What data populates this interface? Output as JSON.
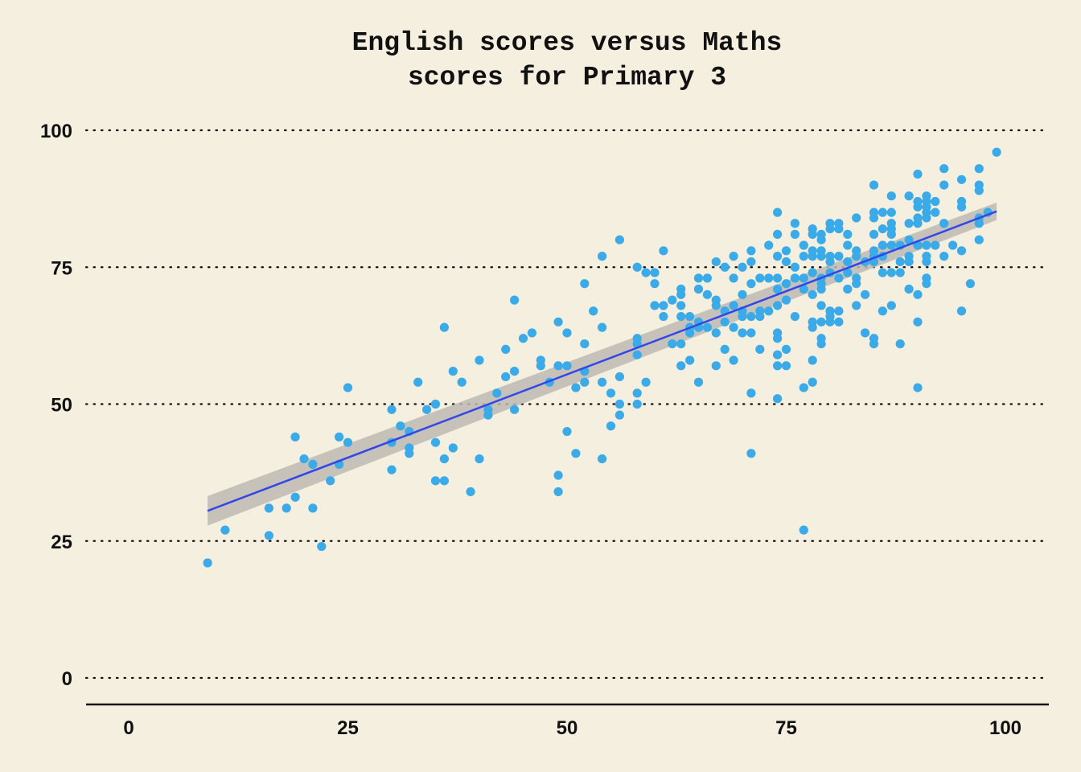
{
  "chart_data": {
    "type": "scatter",
    "title_lines": [
      "English scores versus Maths",
      "scores for Primary 3"
    ],
    "xlabel": "",
    "ylabel": "",
    "xlim": [
      -5,
      105
    ],
    "ylim": [
      -5,
      103
    ],
    "x_ticks": [
      0,
      25,
      50,
      75,
      100
    ],
    "y_ticks": [
      0,
      25,
      50,
      75,
      100
    ],
    "grid": "horizontal dotted",
    "colors": {
      "points": "#3aaae8",
      "line": "#3346e6",
      "band": "#bdbab4",
      "background": "#f5efdf"
    },
    "trend": {
      "x": [
        9,
        99
      ],
      "y": [
        30.5,
        85.2
      ],
      "band_low": [
        27.8,
        83.6
      ],
      "band_high": [
        33.2,
        86.8
      ]
    },
    "points": [
      [
        9,
        21
      ],
      [
        11,
        27
      ],
      [
        16,
        31
      ],
      [
        16,
        26
      ],
      [
        18,
        31
      ],
      [
        19,
        33
      ],
      [
        19,
        44
      ],
      [
        20,
        40
      ],
      [
        21,
        39
      ],
      [
        21,
        31
      ],
      [
        22,
        24
      ],
      [
        23,
        36
      ],
      [
        24,
        44
      ],
      [
        24,
        39
      ],
      [
        25,
        53
      ],
      [
        25,
        43
      ],
      [
        30,
        49
      ],
      [
        30,
        43
      ],
      [
        30,
        38
      ],
      [
        31,
        46
      ],
      [
        32,
        45
      ],
      [
        32,
        42
      ],
      [
        32,
        41
      ],
      [
        33,
        54
      ],
      [
        34,
        49
      ],
      [
        35,
        50
      ],
      [
        35,
        43
      ],
      [
        35,
        36
      ],
      [
        36,
        64
      ],
      [
        36,
        40
      ],
      [
        36,
        36
      ],
      [
        37,
        56
      ],
      [
        37,
        42
      ],
      [
        38,
        54
      ],
      [
        39,
        34
      ],
      [
        40,
        58
      ],
      [
        40,
        40
      ],
      [
        41,
        49
      ],
      [
        41,
        48
      ],
      [
        42,
        52
      ],
      [
        43,
        60
      ],
      [
        43,
        55
      ],
      [
        44,
        69
      ],
      [
        44,
        56
      ],
      [
        44,
        49
      ],
      [
        45,
        62
      ],
      [
        46,
        63
      ],
      [
        47,
        58
      ],
      [
        47,
        57
      ],
      [
        48,
        54
      ],
      [
        49,
        65
      ],
      [
        49,
        57
      ],
      [
        49,
        37
      ],
      [
        49,
        34
      ],
      [
        50,
        63
      ],
      [
        50,
        57
      ],
      [
        50,
        45
      ],
      [
        51,
        53
      ],
      [
        51,
        41
      ],
      [
        52,
        72
      ],
      [
        52,
        61
      ],
      [
        52,
        56
      ],
      [
        52,
        54
      ],
      [
        53,
        67
      ],
      [
        54,
        77
      ],
      [
        54,
        64
      ],
      [
        54,
        54
      ],
      [
        54,
        40
      ],
      [
        55,
        52
      ],
      [
        55,
        46
      ],
      [
        56,
        80
      ],
      [
        56,
        55
      ],
      [
        56,
        50
      ],
      [
        56,
        48
      ],
      [
        58,
        75
      ],
      [
        58,
        62
      ],
      [
        58,
        61
      ],
      [
        58,
        59
      ],
      [
        58,
        52
      ],
      [
        58,
        50
      ],
      [
        59,
        74
      ],
      [
        59,
        54
      ],
      [
        60,
        74
      ],
      [
        60,
        72
      ],
      [
        60,
        68
      ],
      [
        61,
        78
      ],
      [
        61,
        68
      ],
      [
        61,
        66
      ],
      [
        62,
        69
      ],
      [
        62,
        61
      ],
      [
        63,
        71
      ],
      [
        63,
        70
      ],
      [
        63,
        68
      ],
      [
        63,
        66
      ],
      [
        63,
        61
      ],
      [
        63,
        57
      ],
      [
        64,
        66
      ],
      [
        64,
        64
      ],
      [
        64,
        63
      ],
      [
        64,
        58
      ],
      [
        65,
        73
      ],
      [
        65,
        71
      ],
      [
        65,
        65
      ],
      [
        65,
        64
      ],
      [
        65,
        54
      ],
      [
        66,
        73
      ],
      [
        66,
        70
      ],
      [
        66,
        64
      ],
      [
        67,
        76
      ],
      [
        67,
        69
      ],
      [
        67,
        68
      ],
      [
        67,
        63
      ],
      [
        67,
        57
      ],
      [
        68,
        75
      ],
      [
        68,
        67
      ],
      [
        68,
        65
      ],
      [
        68,
        60
      ],
      [
        69,
        77
      ],
      [
        69,
        73
      ],
      [
        69,
        68
      ],
      [
        69,
        64
      ],
      [
        69,
        58
      ],
      [
        70,
        75
      ],
      [
        70,
        70
      ],
      [
        70,
        67
      ],
      [
        70,
        66
      ],
      [
        70,
        63
      ],
      [
        71,
        78
      ],
      [
        71,
        76
      ],
      [
        71,
        72
      ],
      [
        71,
        66
      ],
      [
        71,
        63
      ],
      [
        71,
        52
      ],
      [
        71,
        41
      ],
      [
        72,
        73
      ],
      [
        72,
        67
      ],
      [
        72,
        66
      ],
      [
        72,
        60
      ],
      [
        73,
        79
      ],
      [
        73,
        73
      ],
      [
        73,
        67
      ],
      [
        74,
        85
      ],
      [
        74,
        81
      ],
      [
        74,
        77
      ],
      [
        74,
        73
      ],
      [
        74,
        71
      ],
      [
        74,
        68
      ],
      [
        74,
        63
      ],
      [
        74,
        62
      ],
      [
        74,
        59
      ],
      [
        74,
        57
      ],
      [
        74,
        51
      ],
      [
        75,
        78
      ],
      [
        75,
        76
      ],
      [
        75,
        72
      ],
      [
        75,
        69
      ],
      [
        75,
        60
      ],
      [
        75,
        57
      ],
      [
        76,
        83
      ],
      [
        76,
        81
      ],
      [
        76,
        75
      ],
      [
        76,
        73
      ],
      [
        76,
        66
      ],
      [
        77,
        79
      ],
      [
        77,
        77
      ],
      [
        77,
        73
      ],
      [
        77,
        71
      ],
      [
        77,
        53
      ],
      [
        77,
        27
      ],
      [
        78,
        82
      ],
      [
        78,
        81
      ],
      [
        78,
        78
      ],
      [
        78,
        77
      ],
      [
        78,
        74
      ],
      [
        78,
        70
      ],
      [
        78,
        65
      ],
      [
        78,
        64
      ],
      [
        78,
        58
      ],
      [
        78,
        54
      ],
      [
        79,
        81
      ],
      [
        79,
        80
      ],
      [
        79,
        78
      ],
      [
        79,
        77
      ],
      [
        79,
        73
      ],
      [
        79,
        72
      ],
      [
        79,
        71
      ],
      [
        79,
        68
      ],
      [
        79,
        65
      ],
      [
        79,
        62
      ],
      [
        79,
        61
      ],
      [
        80,
        83
      ],
      [
        80,
        82
      ],
      [
        80,
        77
      ],
      [
        80,
        76
      ],
      [
        80,
        74
      ],
      [
        80,
        67
      ],
      [
        80,
        66
      ],
      [
        80,
        65
      ],
      [
        81,
        83
      ],
      [
        81,
        82
      ],
      [
        81,
        77
      ],
      [
        81,
        73
      ],
      [
        81,
        67
      ],
      [
        81,
        65
      ],
      [
        82,
        81
      ],
      [
        82,
        79
      ],
      [
        82,
        76
      ],
      [
        82,
        74
      ],
      [
        82,
        71
      ],
      [
        83,
        84
      ],
      [
        83,
        78
      ],
      [
        83,
        77
      ],
      [
        83,
        73
      ],
      [
        83,
        72
      ],
      [
        83,
        68
      ],
      [
        84,
        76
      ],
      [
        84,
        70
      ],
      [
        84,
        63
      ],
      [
        85,
        90
      ],
      [
        85,
        85
      ],
      [
        85,
        84
      ],
      [
        85,
        81
      ],
      [
        85,
        78
      ],
      [
        85,
        77
      ],
      [
        85,
        76
      ],
      [
        85,
        62
      ],
      [
        85,
        61
      ],
      [
        86,
        85
      ],
      [
        86,
        82
      ],
      [
        86,
        79
      ],
      [
        86,
        77
      ],
      [
        86,
        74
      ],
      [
        86,
        67
      ],
      [
        87,
        88
      ],
      [
        87,
        85
      ],
      [
        87,
        83
      ],
      [
        87,
        82
      ],
      [
        87,
        81
      ],
      [
        87,
        79
      ],
      [
        87,
        74
      ],
      [
        87,
        68
      ],
      [
        88,
        79
      ],
      [
        88,
        76
      ],
      [
        88,
        74
      ],
      [
        88,
        61
      ],
      [
        89,
        88
      ],
      [
        89,
        83
      ],
      [
        89,
        80
      ],
      [
        89,
        77
      ],
      [
        89,
        76
      ],
      [
        89,
        71
      ],
      [
        90,
        92
      ],
      [
        90,
        87
      ],
      [
        90,
        86
      ],
      [
        90,
        84
      ],
      [
        90,
        83
      ],
      [
        90,
        79
      ],
      [
        90,
        70
      ],
      [
        90,
        65
      ],
      [
        90,
        53
      ],
      [
        91,
        88
      ],
      [
        91,
        87
      ],
      [
        91,
        86
      ],
      [
        91,
        85
      ],
      [
        91,
        84
      ],
      [
        91,
        79
      ],
      [
        91,
        77
      ],
      [
        91,
        76
      ],
      [
        91,
        73
      ],
      [
        91,
        72
      ],
      [
        92,
        87
      ],
      [
        92,
        85
      ],
      [
        92,
        79
      ],
      [
        93,
        93
      ],
      [
        93,
        90
      ],
      [
        93,
        83
      ],
      [
        93,
        77
      ],
      [
        94,
        79
      ],
      [
        95,
        91
      ],
      [
        95,
        87
      ],
      [
        95,
        86
      ],
      [
        95,
        78
      ],
      [
        95,
        67
      ],
      [
        96,
        72
      ],
      [
        97,
        93
      ],
      [
        97,
        90
      ],
      [
        97,
        89
      ],
      [
        97,
        84
      ],
      [
        97,
        83
      ],
      [
        97,
        80
      ],
      [
        98,
        85
      ],
      [
        99,
        96
      ]
    ]
  }
}
